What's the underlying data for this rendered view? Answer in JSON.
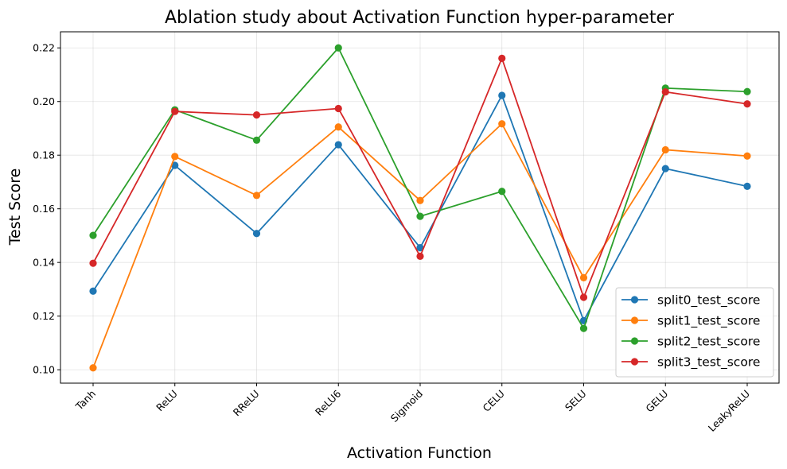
{
  "chart_data": {
    "type": "line",
    "title": "Ablation study about Activation Function hyper-parameter",
    "xlabel": "Activation Function",
    "ylabel": "Test Score",
    "categories": [
      "Tanh",
      "ReLU",
      "RReLU",
      "ReLU6",
      "Sigmoid",
      "CELU",
      "SELU",
      "GELU",
      "LeakyReLU"
    ],
    "ylim": [
      0.095,
      0.226
    ],
    "yticks": [
      "0.10",
      "0.12",
      "0.14",
      "0.16",
      "0.18",
      "0.20",
      "0.22"
    ],
    "grid": true,
    "legend_position": "lower-right",
    "series": [
      {
        "name": "split0_test_score",
        "color": "#1f77b4",
        "values": [
          0.1293,
          0.1762,
          0.1508,
          0.1839,
          0.1455,
          0.2023,
          0.1183,
          0.175,
          0.1684
        ]
      },
      {
        "name": "split1_test_score",
        "color": "#ff7f0e",
        "values": [
          0.1007,
          0.1795,
          0.165,
          0.1905,
          0.1631,
          0.1917,
          0.1343,
          0.182,
          0.1797
        ]
      },
      {
        "name": "split2_test_score",
        "color": "#2ca02c",
        "values": [
          0.1501,
          0.1969,
          0.1856,
          0.22,
          0.1572,
          0.1665,
          0.1154,
          0.205,
          0.2037
        ]
      },
      {
        "name": "split3_test_score",
        "color": "#d62728",
        "values": [
          0.1397,
          0.1963,
          0.195,
          0.1974,
          0.1423,
          0.2161,
          0.127,
          0.2036,
          0.1991
        ]
      }
    ]
  }
}
